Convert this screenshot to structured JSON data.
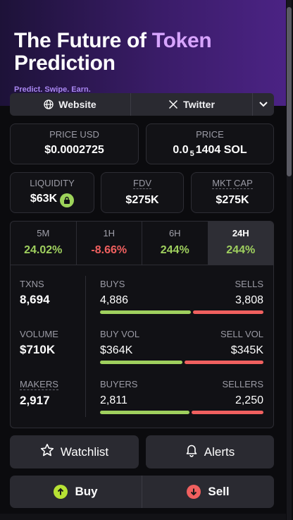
{
  "banner": {
    "title_line1_part1": "The Future of",
    "title_line1_accent": "Token",
    "title_line2": "Prediction",
    "tagline": "Predict. Swipe. Earn."
  },
  "links": {
    "website_label": "Website",
    "twitter_label": "Twitter"
  },
  "price": {
    "usd_label": "PRICE USD",
    "usd_value": "$0.0002725",
    "sol_label": "PRICE",
    "sol_prefix": "0.0",
    "sol_subscript": "5",
    "sol_rest": "1404 SOL"
  },
  "metrics": [
    {
      "label": "LIQUIDITY",
      "value": "$63K"
    },
    {
      "label": "FDV",
      "value": "$275K"
    },
    {
      "label": "MKT CAP",
      "value": "$275K"
    }
  ],
  "timeframes": [
    {
      "label": "5M",
      "value": "24.02%",
      "trend": "up"
    },
    {
      "label": "1H",
      "value": "-8.66%",
      "trend": "down"
    },
    {
      "label": "6H",
      "value": "244%",
      "trend": "up"
    },
    {
      "label": "24H",
      "value": "244%",
      "trend": "up",
      "active": true
    }
  ],
  "stats": {
    "txns": {
      "label": "TXNS",
      "value": "8,694"
    },
    "volume": {
      "label": "VOLUME",
      "value": "$710K"
    },
    "makers": {
      "label": "MAKERS",
      "value": "2,917"
    },
    "buys": {
      "label": "BUYS",
      "value": "4,886",
      "share": 0.562
    },
    "sells": {
      "label": "SELLS",
      "value": "3,808"
    },
    "buy_vol": {
      "label": "BUY VOL",
      "value": "$364K",
      "share": 0.513
    },
    "sell_vol": {
      "label": "SELL VOL",
      "value": "$345K"
    },
    "buyers": {
      "label": "BUYERS",
      "value": "2,811",
      "share": 0.555
    },
    "sellers": {
      "label": "SELLERS",
      "value": "2,250"
    }
  },
  "actions": {
    "watchlist_label": "Watchlist",
    "alerts_label": "Alerts",
    "buy_label": "Buy",
    "sell_label": "Sell"
  },
  "colors": {
    "positive": "#9fd05e",
    "negative": "#f0605f",
    "accent": "#d7a4ff"
  }
}
